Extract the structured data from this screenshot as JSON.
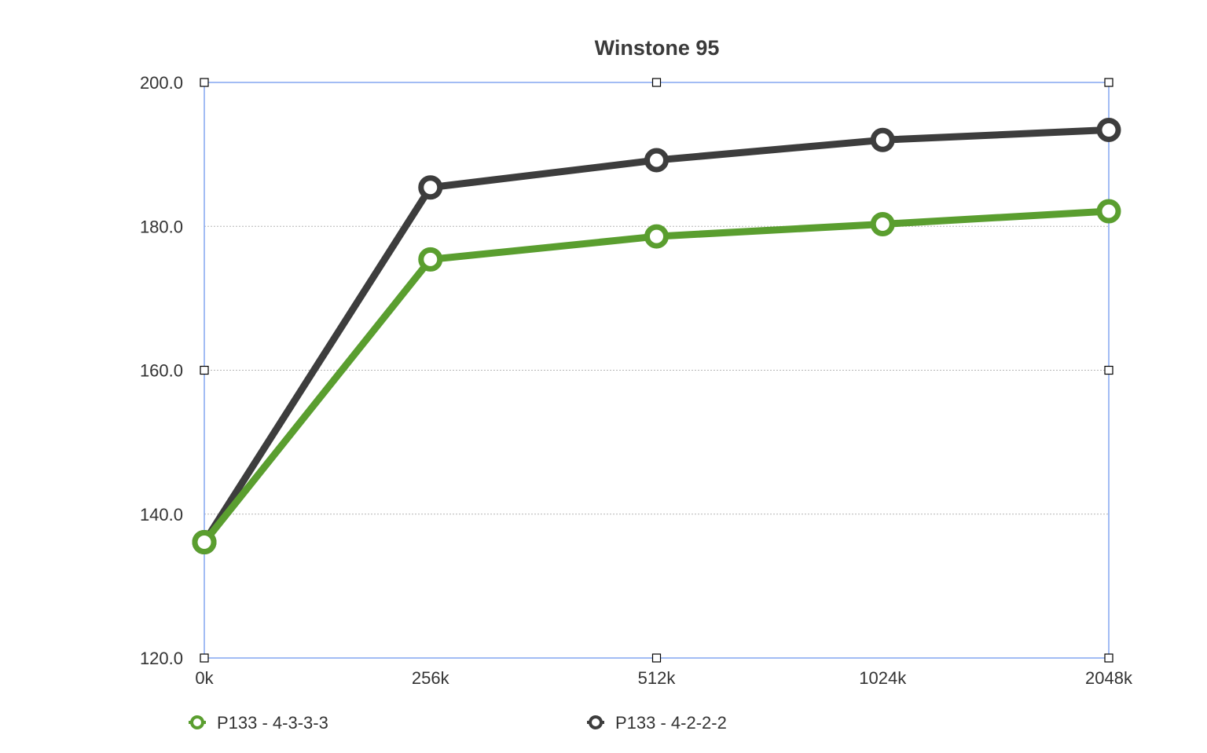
{
  "chart_data": {
    "type": "line",
    "title": "Winstone 95",
    "xlabel": "",
    "ylabel": "",
    "categories": [
      "0k",
      "256k",
      "512k",
      "1024k",
      "2048k"
    ],
    "ylim": [
      120,
      200
    ],
    "yticks": [
      120,
      140,
      160,
      180,
      200
    ],
    "ytick_labels": [
      "120.0",
      "140.0",
      "160.0",
      "180.0",
      "200.0"
    ],
    "grid": true,
    "legend_position": "bottom",
    "series": [
      {
        "name": "P133 - 4-3-3-3",
        "color": "#5a9e2f",
        "values": [
          136.1,
          175.4,
          178.6,
          180.3,
          182.1
        ]
      },
      {
        "name": "P133 - 4-2-2-2",
        "color": "#3d3d3d",
        "values": [
          136.1,
          185.4,
          189.2,
          192.0,
          193.4
        ]
      }
    ]
  }
}
